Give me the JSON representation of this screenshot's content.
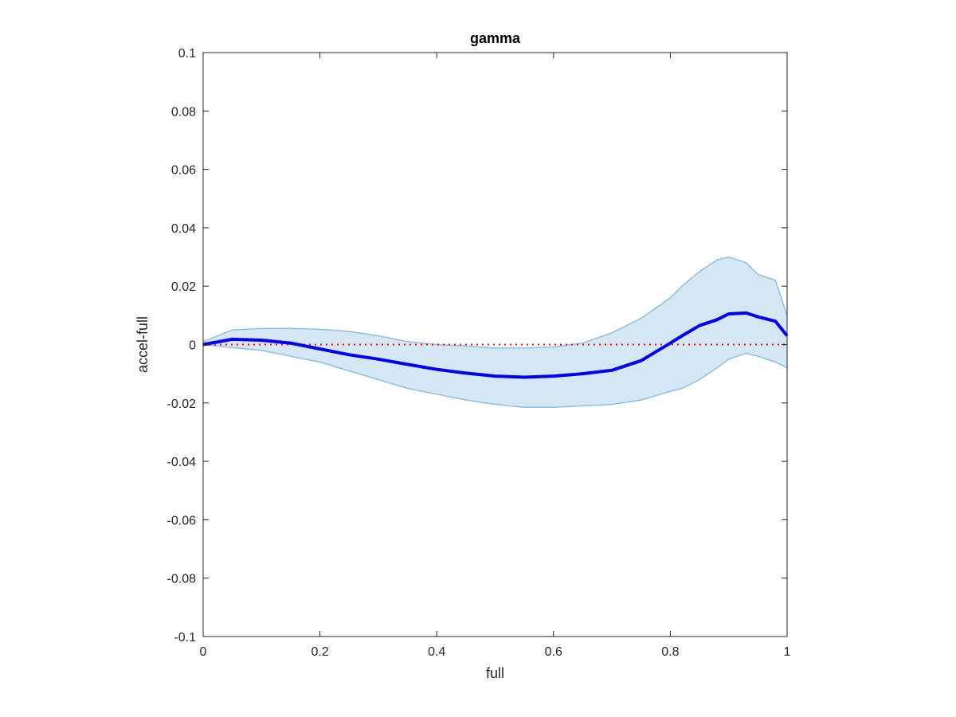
{
  "chart_data": {
    "type": "line",
    "title": "gamma",
    "xlabel": "full",
    "ylabel": "accel-full",
    "xlim": [
      0,
      1
    ],
    "ylim": [
      -0.1,
      0.1
    ],
    "x_ticks": [
      0,
      0.2,
      0.4,
      0.6,
      0.8,
      1
    ],
    "x_tick_labels": [
      "0",
      "0.2",
      "0.4",
      "0.6",
      "0.8",
      "1"
    ],
    "y_ticks": [
      -0.1,
      -0.08,
      -0.06,
      -0.04,
      -0.02,
      0,
      0.02,
      0.04,
      0.06,
      0.08,
      0.1
    ],
    "y_tick_labels": [
      "-0.1",
      "-0.08",
      "-0.06",
      "-0.04",
      "-0.02",
      "0",
      "0.02",
      "0.04",
      "0.06",
      "0.08",
      "0.1"
    ],
    "grid": false,
    "colors": {
      "mean_line": "#0000ee",
      "band_fill": "#d5e6f4",
      "band_edge": "#8fbfe0",
      "zero_line": "#ff0000",
      "axes": "#262626"
    },
    "band": {
      "x": [
        0,
        0.05,
        0.1,
        0.15,
        0.2,
        0.25,
        0.3,
        0.35,
        0.4,
        0.45,
        0.5,
        0.55,
        0.6,
        0.65,
        0.7,
        0.75,
        0.8,
        0.82,
        0.85,
        0.88,
        0.9,
        0.93,
        0.95,
        0.98,
        1.0
      ],
      "upper": [
        0.001,
        0.005,
        0.0055,
        0.0055,
        0.0052,
        0.0045,
        0.003,
        0.001,
        0.0,
        -0.0005,
        -0.0012,
        -0.0012,
        -0.0008,
        0.0005,
        0.004,
        0.009,
        0.016,
        0.02,
        0.025,
        0.029,
        0.03,
        0.028,
        0.024,
        0.022,
        0.01
      ],
      "lower": [
        0.0,
        -0.001,
        -0.002,
        -0.004,
        -0.006,
        -0.009,
        -0.012,
        -0.015,
        -0.017,
        -0.019,
        -0.0205,
        -0.0215,
        -0.0215,
        -0.021,
        -0.0205,
        -0.019,
        -0.016,
        -0.015,
        -0.012,
        -0.008,
        -0.005,
        -0.003,
        -0.004,
        -0.006,
        -0.008
      ]
    },
    "series": [
      {
        "x": [
          0,
          0.05,
          0.1,
          0.15,
          0.2,
          0.25,
          0.3,
          0.35,
          0.4,
          0.45,
          0.5,
          0.55,
          0.6,
          0.65,
          0.7,
          0.75,
          0.8,
          0.82,
          0.85,
          0.88,
          0.9,
          0.93,
          0.95,
          0.98,
          1.0
        ],
        "values": [
          0.0,
          0.0018,
          0.0015,
          0.0005,
          -0.0015,
          -0.0035,
          -0.005,
          -0.0068,
          -0.0085,
          -0.0098,
          -0.0108,
          -0.0112,
          -0.0108,
          -0.01,
          -0.0088,
          -0.0055,
          0.0005,
          0.003,
          0.0065,
          0.0085,
          0.0105,
          0.0108,
          0.0095,
          0.008,
          0.003
        ]
      }
    ],
    "reference_lines": [
      {
        "y": 0,
        "style": "dotted"
      }
    ]
  }
}
